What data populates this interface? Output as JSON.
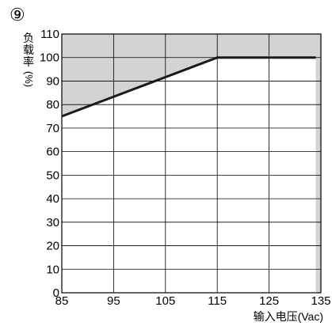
{
  "figure_number": "⑨",
  "colors": {
    "shade": "#d3d3d3",
    "grid": "#000000",
    "line": "#1a1a1a",
    "background": "#ffffff"
  },
  "chart_data": {
    "type": "line",
    "title": "",
    "xlabel": "输入电压(Vac)",
    "ylabel": "负载率(%)",
    "ylabel_chars": [
      "负",
      "载",
      "率"
    ],
    "ylabel_unit": "(%)",
    "xlim": [
      85,
      135
    ],
    "ylim": [
      0,
      110
    ],
    "x_ticks": [
      85,
      95,
      105,
      115,
      125,
      135
    ],
    "y_ticks": [
      0,
      10,
      20,
      30,
      40,
      50,
      60,
      70,
      80,
      90,
      100,
      110
    ],
    "grid": true,
    "series": [
      {
        "x": [
          85,
          115,
          134
        ],
        "y": [
          75,
          100,
          100
        ]
      }
    ],
    "shaded_regions": [
      {
        "description": "derating (not usable) area",
        "polygon": [
          [
            85,
            75
          ],
          [
            115,
            100
          ],
          [
            134,
            100
          ],
          [
            134,
            0
          ],
          [
            135,
            0
          ],
          [
            135,
            110
          ],
          [
            85,
            110
          ]
        ]
      }
    ]
  }
}
